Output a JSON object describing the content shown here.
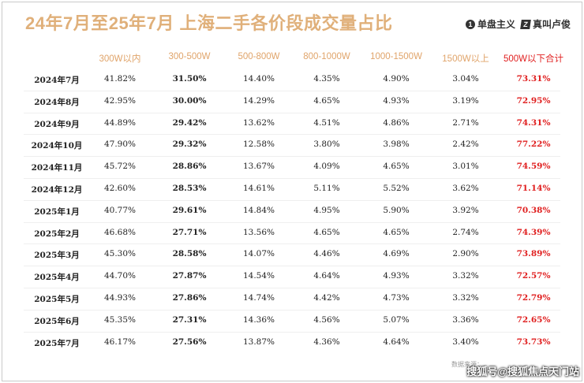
{
  "title": "24年7月至25年7月 上海二手各价段成交量占比",
  "brands": [
    {
      "icon": "1",
      "label": "单盘主义"
    },
    {
      "icon": "Z",
      "label": "真叫卢俊"
    }
  ],
  "watermark": "搜狐号@搜狐焦点天门站",
  "source_note": "数据来源：",
  "colors": {
    "header": "#e0a46a",
    "title": "#e0b07a",
    "highlight": "#e02020"
  },
  "chart_data": {
    "type": "table",
    "title": "24年7月至25年7月 上海二手各价段成交量占比",
    "columns": [
      "300W以内",
      "300-500W",
      "500-800W",
      "800-1000W",
      "1000-1500W",
      "1500W以上",
      "500W以下合计"
    ],
    "rows": [
      {
        "label": "2024年7月",
        "values": [
          "41.82%",
          "31.50%",
          "14.40%",
          "4.35%",
          "4.90%",
          "3.04%",
          "73.31%"
        ]
      },
      {
        "label": "2024年8月",
        "values": [
          "42.95%",
          "30.00%",
          "14.29%",
          "4.65%",
          "4.93%",
          "3.19%",
          "72.95%"
        ]
      },
      {
        "label": "2024年9月",
        "values": [
          "44.89%",
          "29.42%",
          "13.62%",
          "4.51%",
          "4.86%",
          "2.71%",
          "74.31%"
        ]
      },
      {
        "label": "2024年10月",
        "values": [
          "47.90%",
          "29.32%",
          "12.58%",
          "3.80%",
          "3.98%",
          "2.42%",
          "77.22%"
        ]
      },
      {
        "label": "2024年11月",
        "values": [
          "45.72%",
          "28.86%",
          "13.67%",
          "4.09%",
          "4.65%",
          "3.01%",
          "74.59%"
        ]
      },
      {
        "label": "2024年12月",
        "values": [
          "42.60%",
          "28.53%",
          "14.61%",
          "5.11%",
          "5.52%",
          "3.62%",
          "71.14%"
        ]
      },
      {
        "label": "2025年1月",
        "values": [
          "40.77%",
          "29.61%",
          "14.84%",
          "4.95%",
          "5.90%",
          "3.92%",
          "70.38%"
        ]
      },
      {
        "label": "2025年2月",
        "values": [
          "46.68%",
          "27.71%",
          "13.56%",
          "4.65%",
          "4.65%",
          "2.74%",
          "74.39%"
        ]
      },
      {
        "label": "2025年3月",
        "values": [
          "45.30%",
          "28.58%",
          "14.07%",
          "4.46%",
          "4.69%",
          "2.90%",
          "73.89%"
        ]
      },
      {
        "label": "2025年4月",
        "values": [
          "44.70%",
          "27.87%",
          "14.54%",
          "4.64%",
          "4.93%",
          "3.32%",
          "72.57%"
        ]
      },
      {
        "label": "2025年5月",
        "values": [
          "44.93%",
          "27.86%",
          "14.74%",
          "4.42%",
          "4.73%",
          "3.32%",
          "72.79%"
        ]
      },
      {
        "label": "2025年6月",
        "values": [
          "45.35%",
          "27.31%",
          "14.36%",
          "4.56%",
          "5.07%",
          "3.36%",
          "72.65%"
        ]
      },
      {
        "label": "2025年7月",
        "values": [
          "46.17%",
          "27.56%",
          "13.87%",
          "4.36%",
          "4.64%",
          "3.40%",
          "73.73%"
        ]
      }
    ]
  }
}
